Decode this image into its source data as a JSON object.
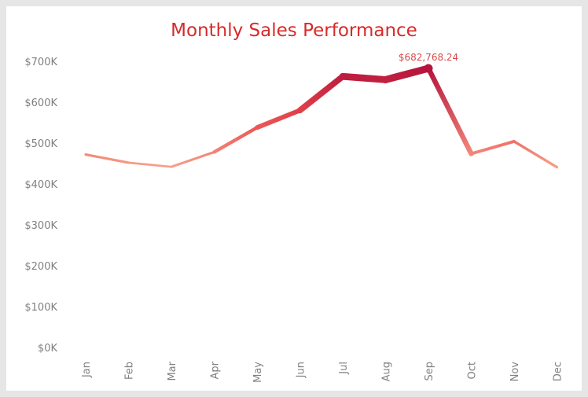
{
  "chart_data": {
    "type": "line",
    "title": "Monthly Sales Performance",
    "xlabel": "",
    "ylabel": "",
    "categories": [
      "Jan",
      "Feb",
      "Mar",
      "Apr",
      "May",
      "Jun",
      "Jul",
      "Aug",
      "Sep",
      "Oct",
      "Nov",
      "Dec"
    ],
    "values": [
      472000,
      452000,
      442000,
      478000,
      538000,
      580000,
      663000,
      655000,
      682768.24,
      474000,
      504000,
      441000
    ],
    "ylim": [
      0,
      700000
    ],
    "yticks": [
      0,
      100000,
      200000,
      300000,
      400000,
      500000,
      600000,
      700000
    ],
    "ytick_labels": [
      "$0K",
      "$100K",
      "$200K",
      "$300K",
      "$400K",
      "$500K",
      "$600K",
      "$700K"
    ],
    "annotation": {
      "index": 8,
      "text": "$682,768.24"
    },
    "grid": false,
    "legend": "none",
    "colors": {
      "low": "#f6a08a",
      "mid": "#e8464b",
      "high": "#b5153d",
      "title": "#d72a2a"
    }
  }
}
